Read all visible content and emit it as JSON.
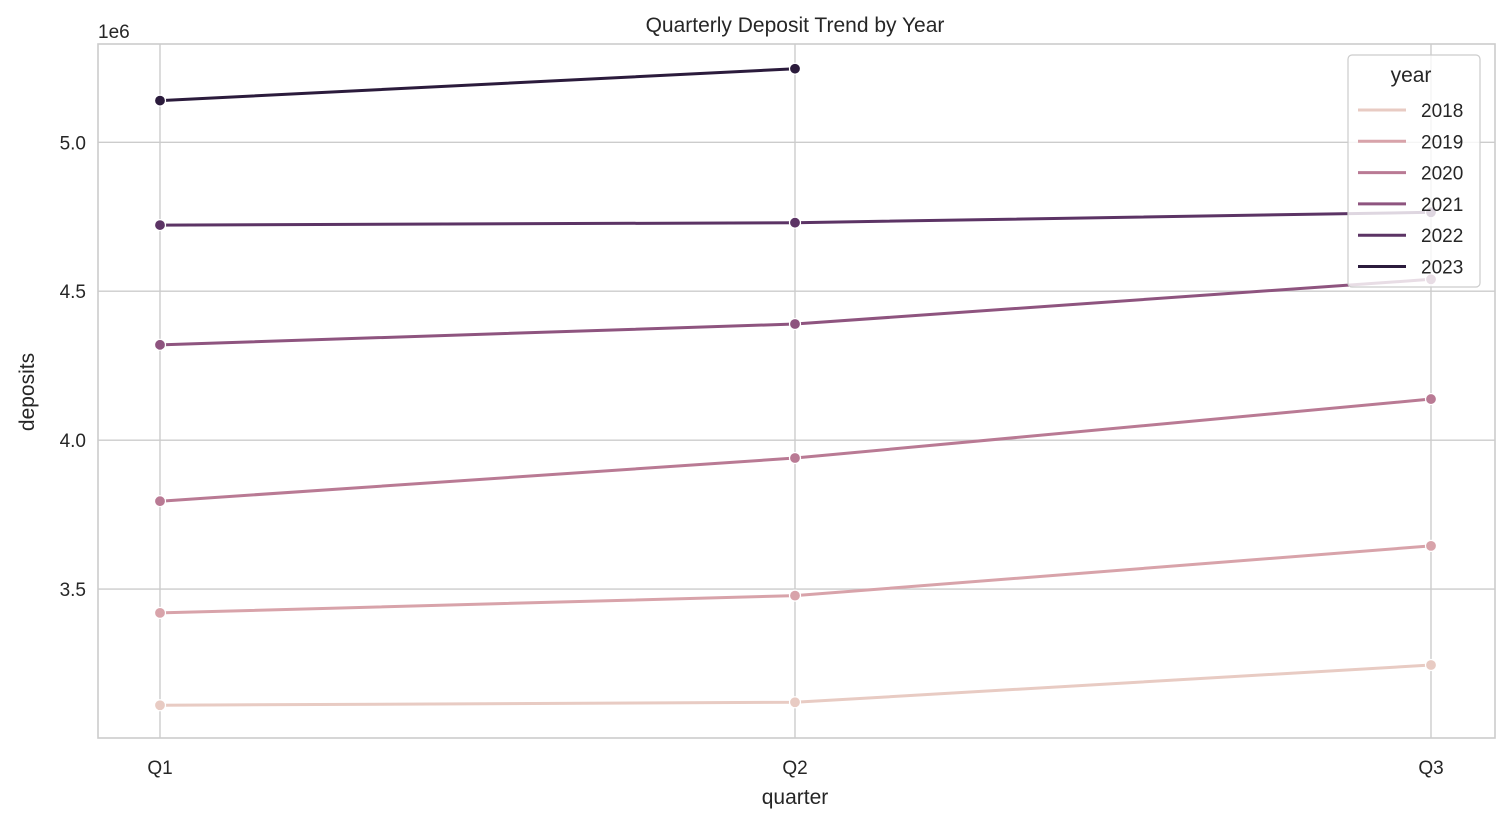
{
  "chart_data": {
    "type": "line",
    "title": "Quarterly Deposit Trend by Year",
    "xlabel": "quarter",
    "ylabel": "deposits",
    "y_offset_label": "1e6",
    "y_scale_factor": 1000000,
    "categories": [
      "Q1",
      "Q2",
      "Q3"
    ],
    "ylim": [
      3000000,
      5330000
    ],
    "y_ticks": [
      3500000,
      4000000,
      4500000,
      5000000
    ],
    "y_tick_labels": [
      "3.5",
      "4.0",
      "4.5",
      "5.0"
    ],
    "grid": true,
    "markers": true,
    "legend": {
      "title": "year",
      "placement": "top-right"
    },
    "series": [
      {
        "name": "2018",
        "color": "#e8cbc3",
        "values": [
          3110000,
          3120000,
          3245000
        ]
      },
      {
        "name": "2019",
        "color": "#d8a3aa",
        "values": [
          3420000,
          3478000,
          3645000
        ]
      },
      {
        "name": "2020",
        "color": "#b97a94",
        "values": [
          3795000,
          3940000,
          4138000
        ]
      },
      {
        "name": "2021",
        "color": "#8e547f",
        "values": [
          4320000,
          4390000,
          4540000
        ]
      },
      {
        "name": "2022",
        "color": "#5c3465",
        "values": [
          4722000,
          4730000,
          4765000
        ]
      },
      {
        "name": "2023",
        "color": "#2b1b3c",
        "values": [
          5140000,
          5247000,
          null
        ]
      }
    ]
  }
}
